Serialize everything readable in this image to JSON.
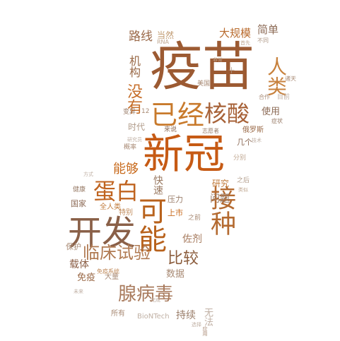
{
  "words": [
    {
      "text": "疫苗",
      "color": "#9c5a32"
    },
    {
      "text": "新冠",
      "color": "#c65a14"
    },
    {
      "text": "开发",
      "color": "#8a6048"
    },
    {
      "text": "可能",
      "color": "#b8621c"
    },
    {
      "text": "接种",
      "color": "#b46a30"
    },
    {
      "text": "已经",
      "color": "#c87a2c"
    },
    {
      "text": "核酸",
      "color": "#a76238"
    },
    {
      "text": "蛋白",
      "color": "#c06420"
    },
    {
      "text": "人类",
      "color": "#c8823e"
    },
    {
      "text": "临床试验",
      "color": "#b07a52"
    },
    {
      "text": "腺病毒",
      "color": "#a87a5c"
    },
    {
      "text": "比较",
      "color": "#8c5e3e"
    },
    {
      "text": "没有",
      "color": "#c66e2a"
    },
    {
      "text": "能够",
      "color": "#c86a1c"
    },
    {
      "text": "快速",
      "color": "#9a7a62"
    },
    {
      "text": "路线",
      "color": "#9a6848"
    },
    {
      "text": "当然",
      "color": "#c09a70"
    },
    {
      "text": "大规模",
      "color": "#b86a2c"
    },
    {
      "text": "简单",
      "color": "#8c6a55"
    },
    {
      "text": "机构",
      "color": "#9a6a48"
    },
    {
      "text": "时代",
      "color": "#b09a88"
    },
    {
      "text": "研究",
      "color": "#c07a3a"
    },
    {
      "text": "使用",
      "color": "#8c6a55"
    },
    {
      "text": "问题",
      "color": "#9a7e6a"
    },
    {
      "text": "佐剂",
      "color": "#a87e62"
    },
    {
      "text": "载体",
      "color": "#8c6048"
    },
    {
      "text": "免疫",
      "color": "#9a6a48"
    },
    {
      "text": "数据",
      "color": "#a88a74"
    },
    {
      "text": "持续",
      "color": "#9a7e6a"
    },
    {
      "text": "国家",
      "color": "#8c6a55"
    },
    {
      "text": "保护",
      "color": "#a88a74"
    },
    {
      "text": "压力",
      "color": "#9a7e6a"
    },
    {
      "text": "上市",
      "color": "#c86a1c"
    },
    {
      "text": "全人类",
      "color": "#c07a3a"
    },
    {
      "text": "特别",
      "color": "#c08a5a"
    },
    {
      "text": "BioNTech",
      "color": "#c0b0a4"
    },
    {
      "text": "所有",
      "color": "#a88a74"
    },
    {
      "text": "大量",
      "color": "#a88a74"
    },
    {
      "text": "几个",
      "color": "#8c6a55"
    },
    {
      "text": "分别",
      "color": "#c0a892"
    },
    {
      "text": "之后",
      "color": "#b09a88"
    },
    {
      "text": "之前",
      "color": "#a88a74"
    },
    {
      "text": "俄罗斯",
      "color": "#9a6a48"
    },
    {
      "text": "美国",
      "color": "#a88a74"
    },
    {
      "text": "变异",
      "color": "#9a7e6a"
    },
    {
      "text": "来说",
      "color": "#8c6a55"
    },
    {
      "text": "健康",
      "color": "#9a7e6a"
    },
    {
      "text": "概率",
      "color": "#a88a74"
    },
    {
      "text": "目前",
      "color": "#c0b0a4"
    },
    {
      "text": "症状",
      "color": "#9a7e6a"
    },
    {
      "text": "合作",
      "color": "#a88a74"
    },
    {
      "text": "应用",
      "color": "#a88a74"
    },
    {
      "text": "免疫系统",
      "color": "#c08a5a"
    },
    {
      "text": "无法",
      "color": "#c0b0a4"
    },
    {
      "text": "RNA",
      "color": "#c0a892"
    },
    {
      "text": "志愿者",
      "color": "#9a7e6a"
    },
    {
      "text": "12",
      "color": "#a88a74"
    },
    {
      "text": "十",
      "color": "#b09a88"
    },
    {
      "text": "不同",
      "color": "#b09a88"
    },
    {
      "text": "诸天",
      "color": "#a88a74"
    },
    {
      "text": "研究员",
      "color": "#c0b0a4"
    },
    {
      "text": "首先",
      "color": "#c0a892"
    },
    {
      "text": "类似",
      "color": "#c0a892"
    },
    {
      "text": "非常",
      "color": "#c0a892"
    },
    {
      "text": "未来",
      "color": "#c0b0a4"
    },
    {
      "text": "选择",
      "color": "#c0b0a4"
    },
    {
      "text": "方式",
      "color": "#c0b0a4"
    },
    {
      "text": "技术",
      "color": "#c0b0a4"
    },
    {
      "text": "完成",
      "color": "#c0b0a4"
    }
  ]
}
